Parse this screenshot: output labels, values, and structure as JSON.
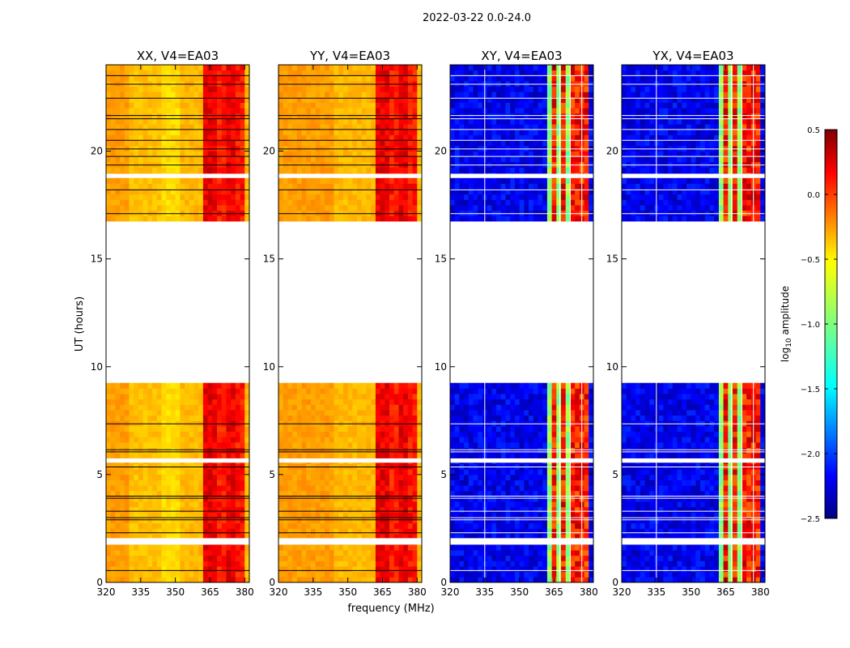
{
  "figure": {
    "suptitle": "2022-03-22 0.0-24.0",
    "ylabel": "UT (hours)",
    "xlabel": "frequency (MHz)"
  },
  "chart_data": {
    "type": "heatmap",
    "ylim": [
      0,
      24
    ],
    "xlim": [
      320,
      382
    ],
    "x_ticks": [
      320,
      335,
      350,
      365,
      380
    ],
    "y_ticks": [
      0,
      5,
      10,
      15,
      20
    ],
    "data_gap_hours": [
      [
        9.35,
        16.65
      ]
    ],
    "band_mhz": [
      363,
      380
    ],
    "panels": [
      {
        "title": "XX, V4=EA03",
        "kind": "auto"
      },
      {
        "title": "YY, V4=EA03",
        "kind": "auto"
      },
      {
        "title": "XY, V4=EA03",
        "kind": "cross"
      },
      {
        "title": "YX, V4=EA03",
        "kind": "cross"
      }
    ],
    "colorbar": {
      "label": "log10 amplitude",
      "range": [
        -2.5,
        0.5
      ],
      "ticks": [
        "0.5",
        "0.0",
        "−0.5",
        "−1.0",
        "−1.5",
        "−2.0",
        "−2.5"
      ],
      "colormap": "jet"
    }
  }
}
